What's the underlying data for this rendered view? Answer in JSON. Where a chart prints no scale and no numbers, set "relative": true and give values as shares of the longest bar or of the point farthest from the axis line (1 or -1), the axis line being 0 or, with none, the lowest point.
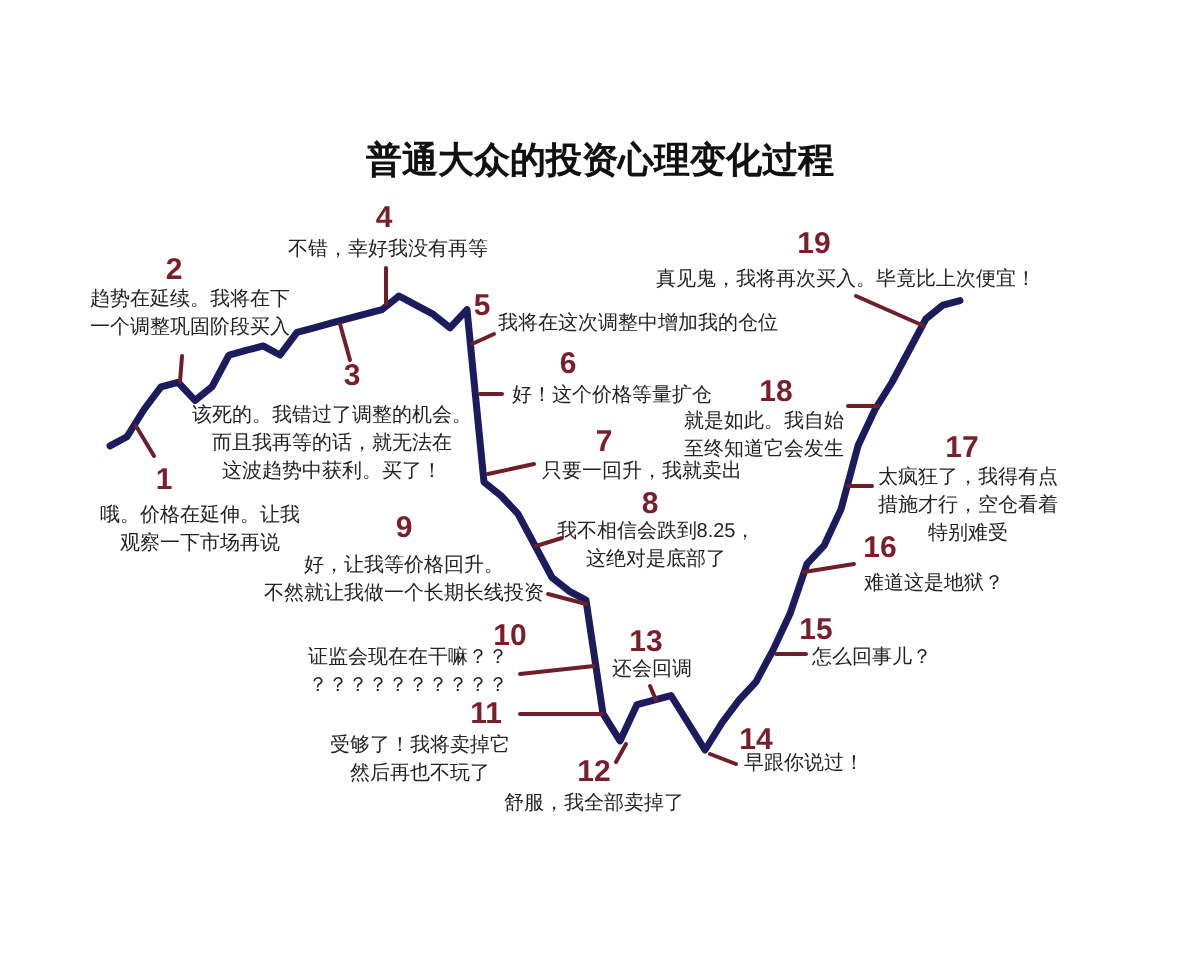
{
  "chart_data": {
    "type": "line",
    "title": "普通大众的投资心理变化过程",
    "relative": true,
    "marker": "none",
    "categories": [
      null,
      null,
      null,
      null,
      null,
      null,
      null,
      null,
      null,
      null,
      null,
      null,
      null,
      null,
      null,
      null,
      null,
      null,
      null,
      null,
      null,
      null,
      null,
      null,
      null,
      null,
      null,
      null,
      null,
      null,
      null,
      null,
      null,
      null,
      null,
      null,
      null,
      null,
      null,
      null,
      null,
      null,
      null,
      null,
      null,
      null,
      null,
      null,
      null,
      null,
      null
    ],
    "series": [
      {
        "color": "#1b1b5e",
        "values": [
          0.67,
          0.69,
          0.75,
          0.8,
          0.81,
          0.77,
          0.8,
          0.87,
          0.88,
          0.89,
          0.87,
          0.92,
          0.93,
          0.94,
          0.95,
          0.96,
          0.97,
          1,
          0.98,
          0.96,
          0.93,
          0.97,
          0.59,
          0.56,
          0.52,
          0.45,
          0.38,
          0.35,
          0.33,
          0.08,
          0.02,
          0.1,
          0.11,
          0.12,
          0.06,
          0,
          0.06,
          0.11,
          0.15,
          0.22,
          0.3,
          0.41,
          0.45,
          0.53,
          0.67,
          0.75,
          0.81,
          0.88,
          0.95,
          0.98,
          0.99
        ]
      }
    ],
    "annotations": [
      "1",
      "哦。价格在延伸。让我观察一下市场再说",
      "2",
      "趋势在延续。我将在下一个调整巩固阶段买入",
      "3",
      "该死的。我错过了调整的机会。而且我再等的话，就无法在这波趋势中获利。买了！",
      "4",
      "不错，幸好我没有再等",
      "5",
      "我将在这次调整中增加我的仓位",
      "6",
      "好！这个价格等量扩仓",
      "7",
      "只要一回升，我就卖出",
      "8",
      "我不相信会跌到8.25，这绝对是底部了",
      "9",
      "好，让我等价格回升。不然就让我做一个长期长线投资",
      "10",
      "证监会现在在干嘛？？？？？？？？？？？？",
      "11",
      "受够了！我将卖掉它然后再也不玩了",
      "12",
      "舒服，我全部卖掉了",
      "13",
      "还会回调",
      "14",
      "早跟你说过！",
      "15",
      "怎么回事儿？",
      "16",
      "难道这是地狱？",
      "17",
      "太疯狂了，我得有点措施才行，空仓看着特别难受",
      "18",
      "就是如此。我自始至终知道它会发生",
      "19",
      "真见鬼，我将再次买入。毕竟比上次便宜！"
    ]
  }
}
